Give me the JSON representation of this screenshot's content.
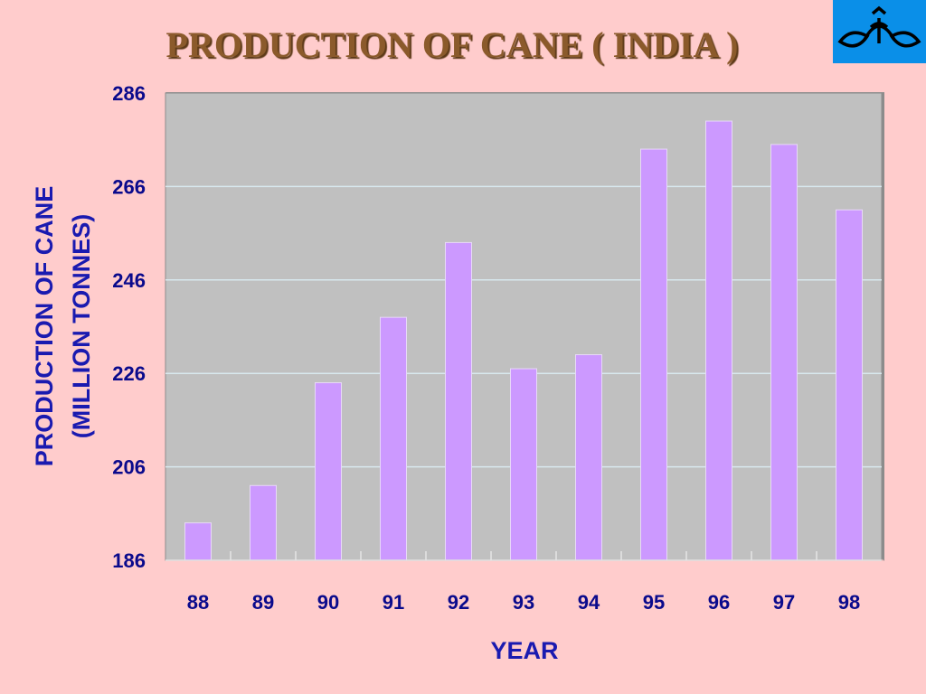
{
  "title": "PRODUCTION OF CANE ( INDIA )",
  "colors": {
    "background": "#ffcccc",
    "plot_area": "#c0c0c0",
    "bar_fill": "#cc99ff",
    "gridline": "#d8e8ee",
    "axis_text": "#0a0a8c",
    "title_text": "#8b5a2b",
    "logo_bg": "#0a8fe8"
  },
  "logo": {
    "icon": "leaf-emblem-icon"
  },
  "chart_data": {
    "type": "bar",
    "title": "PRODUCTION OF CANE ( INDIA )",
    "xlabel": "YEAR",
    "ylabel_lines": [
      "PRODUCTION OF CANE",
      "(MILLION TONNES)"
    ],
    "categories": [
      "88",
      "89",
      "90",
      "91",
      "92",
      "93",
      "94",
      "95",
      "96",
      "97",
      "98"
    ],
    "values": [
      194,
      202,
      224,
      238,
      254,
      227,
      230,
      274,
      280,
      275,
      261
    ],
    "ylim": [
      186,
      286
    ],
    "yticks": [
      "186",
      "206",
      "226",
      "246",
      "266",
      "286"
    ],
    "grid": true,
    "legend": "none"
  }
}
